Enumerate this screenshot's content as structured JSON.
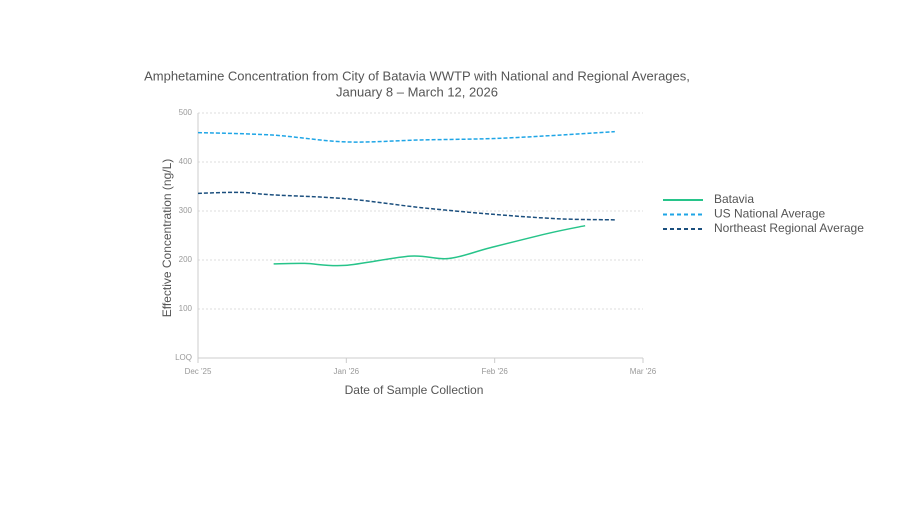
{
  "chart_data": {
    "type": "line",
    "title": "Amphetamine Concentration from City of Batavia WWTP with National and Regional Averages,",
    "subtitle": "January 8 – March 12, 2026",
    "xlabel": "Date of Sample Collection",
    "ylabel": "Effective Concentration (ng/L)",
    "xlim": [
      0,
      3
    ],
    "xticks": [
      {
        "value": 0,
        "label": "Dec '25"
      },
      {
        "value": 1,
        "label": "Jan '26"
      },
      {
        "value": 2,
        "label": "Feb '26"
      },
      {
        "value": 3,
        "label": "Mar '26"
      }
    ],
    "ylim": [
      0,
      500
    ],
    "yticks": [
      {
        "value": 0,
        "label": "LOQ"
      },
      100,
      200,
      300,
      400,
      500
    ],
    "grid": true,
    "legend": "right",
    "series": [
      {
        "name": "Batavia",
        "color": "#27c48a",
        "dash": false,
        "x": [
          0.51,
          0.72,
          0.99,
          1.43,
          1.69,
          1.97,
          2.37,
          2.61
        ],
        "values": [
          192,
          193,
          189,
          208,
          203,
          225,
          255,
          270
        ]
      },
      {
        "name": "US National Average",
        "color": "#1ea5e6",
        "dash": true,
        "x": [
          0,
          0.5,
          1,
          1.5,
          2,
          2.5,
          2.81
        ],
        "values": [
          460,
          455,
          441,
          445,
          448,
          456,
          462
        ]
      },
      {
        "name": "Northeast Regional Average",
        "color": "#1b4f7e",
        "dash": true,
        "x": [
          0,
          0.28,
          0.5,
          1,
          1.5,
          2,
          2.44,
          2.81
        ],
        "values": [
          336,
          338,
          333,
          325,
          307,
          293,
          284,
          282
        ]
      }
    ]
  }
}
